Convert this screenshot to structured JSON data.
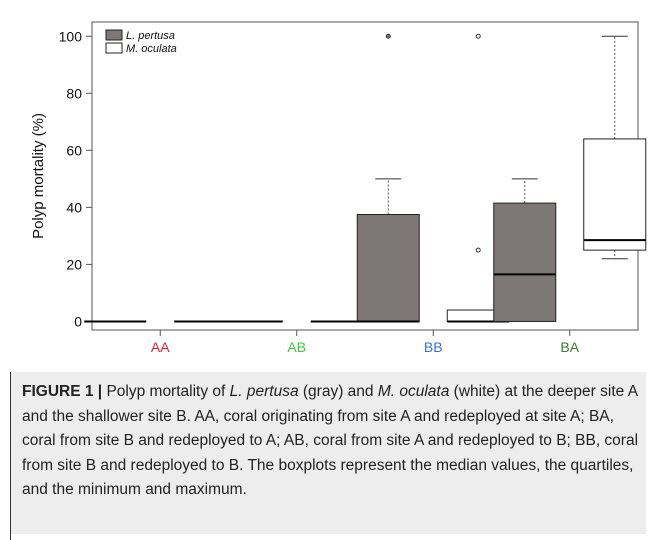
{
  "chart_data": {
    "type": "boxplot",
    "ylabel": "Polyp mortality (%)",
    "yticks": [
      0,
      20,
      40,
      60,
      80,
      100
    ],
    "ylim": [
      -3,
      105
    ],
    "categories": [
      "AA",
      "AB",
      "BB",
      "BA"
    ],
    "category_colors": [
      "#e8212b",
      "#3ec83e",
      "#3a6fd8",
      "#3a7d2a"
    ],
    "legend": {
      "placement": "top-left",
      "entries": [
        {
          "name": "L. pertusa",
          "color": "#7d7777"
        },
        {
          "name": "M. oculata",
          "color": "#ffffff"
        }
      ]
    },
    "series": [
      {
        "name": "L. pertusa",
        "color": "#7d7777",
        "boxes": [
          {
            "category": "AA",
            "min": 0,
            "q1": 0,
            "median": 0,
            "q3": 0,
            "max": 0,
            "outliers": []
          },
          {
            "category": "AB",
            "min": 0,
            "q1": 0,
            "median": 0,
            "q3": 0,
            "max": 0,
            "outliers": []
          },
          {
            "category": "BB",
            "min": 0,
            "q1": 0,
            "median": 0,
            "q3": 37.5,
            "max": 50,
            "outliers": [
              100
            ]
          },
          {
            "category": "BA",
            "min": 0,
            "q1": 0,
            "median": 16.5,
            "q3": 41.5,
            "max": 50,
            "outliers": []
          }
        ]
      },
      {
        "name": "M. oculata",
        "color": "#ffffff",
        "boxes": [
          {
            "category": "AA",
            "min": 0,
            "q1": 0,
            "median": 0,
            "q3": 0,
            "max": 0,
            "outliers": []
          },
          {
            "category": "AB",
            "min": 0,
            "q1": 0,
            "median": 0,
            "q3": 0,
            "max": 0,
            "outliers": []
          },
          {
            "category": "BB",
            "min": 0,
            "q1": 0,
            "median": 0,
            "q3": 4,
            "max": 4,
            "outliers": [
              25,
              100
            ]
          },
          {
            "category": "BA",
            "min": 22,
            "q1": 25,
            "median": 28.5,
            "q3": 64,
            "max": 100,
            "outliers": []
          }
        ]
      }
    ]
  },
  "caption": {
    "label": "FIGURE 1 |",
    "segments": [
      {
        "text": " Polyp mortality of ",
        "italic": false
      },
      {
        "text": "L. pertusa",
        "italic": true
      },
      {
        "text": " (gray) and ",
        "italic": false
      },
      {
        "text": "M. oculata",
        "italic": true
      },
      {
        "text": " (white) at the deeper site A and the shallower site B. AA, coral originating from site A and redeployed at site A; BA, coral from site B and redeployed to A; AB, coral from site A and redeployed to B; BB, coral from site B and redeployed to B. The boxplots represent the median values, the quartiles, and the minimum and maximum.",
        "italic": false
      }
    ]
  }
}
